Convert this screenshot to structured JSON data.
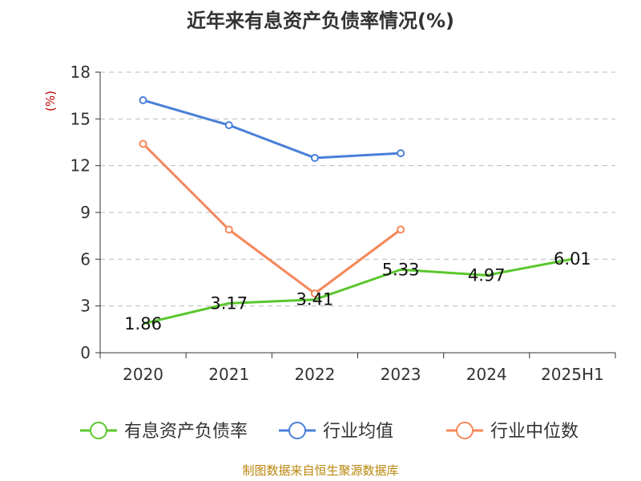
{
  "title": "近年来有息资产负债率情况(%)",
  "source": "制图数据来自恒生聚源数据库",
  "chart_data": {
    "type": "line",
    "title": "近年来有息资产负债率情况(%)",
    "categories": [
      "2020",
      "2021",
      "2022",
      "2023",
      "2024",
      "2025H1"
    ],
    "y_unit": "(%)",
    "ylim": [
      0,
      18
    ],
    "yticks": [
      0,
      3,
      6,
      9,
      12,
      15,
      18
    ],
    "grid": true,
    "legend_position": "bottom",
    "series": [
      {
        "name": "有息资产负债率",
        "color": "#5ac72e",
        "values": [
          1.86,
          3.17,
          3.41,
          5.33,
          4.97,
          6.01
        ],
        "labels": [
          "1.86",
          "3.17",
          "3.41",
          "5.33",
          "4.97",
          "6.01"
        ]
      },
      {
        "name": "行业均值",
        "color": "#4a7fd8",
        "values": [
          16.2,
          14.6,
          12.5,
          12.8,
          null,
          null
        ]
      },
      {
        "name": "行业中位数",
        "color": "#f5875a",
        "values": [
          13.4,
          7.9,
          3.8,
          7.9,
          null,
          null
        ]
      }
    ]
  }
}
